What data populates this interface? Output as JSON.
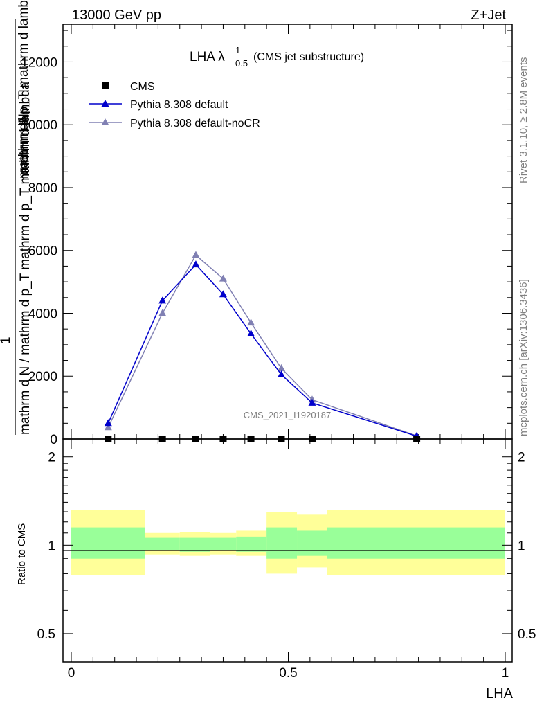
{
  "header": {
    "left": "13000 GeV pp",
    "right": "Z+Jet"
  },
  "side_labels": {
    "rivet": "Rivet 3.1.10, ≥ 2.8M events",
    "mcplots": "mcplots.cern.ch [arXiv:1306.3436]"
  },
  "main_plot": {
    "title_main": "LHA λ",
    "title_sup": "1",
    "title_sub": "0.5",
    "title_suffix": "(CMS jet substructure)",
    "watermark": "CMS_2021_I1920187",
    "ylabel_numerator": "mathrm dN",
    "ylabel_numerator_1": "mathrm d p_T mathrm d lambda",
    "ylabel_one": "1",
    "ylabel_denominator": "mathrm d N / mathrm d p_T mathrm d p_T mathrm d lambda",
    "legend": [
      {
        "label": "CMS",
        "marker": "square",
        "color": "#000000"
      },
      {
        "label": "Pythia 8.308 default",
        "marker": "triangle",
        "color": "#0000cc"
      },
      {
        "label": "Pythia 8.308 default-noCR",
        "marker": "triangle",
        "color": "#8080b3"
      }
    ],
    "yticks": [
      "0",
      "2000",
      "4000",
      "6000",
      "8000",
      "10000",
      "12000"
    ]
  },
  "ratio_plot": {
    "ylabel": "Ratio to CMS",
    "yticks": [
      "0.5",
      "1",
      "2"
    ],
    "xticks": [
      "0",
      "0.5",
      "1"
    ],
    "xlabel": "LHA"
  },
  "colors": {
    "band_inner": "#99ff99",
    "band_outer": "#ffff99",
    "series_default": "#0000cc",
    "series_nocr": "#8080b3"
  },
  "chart_data": {
    "type": "line",
    "xlabel": "LHA",
    "xlim": [
      0,
      1
    ],
    "ylim": [
      0,
      13200
    ],
    "x": [
      0.085,
      0.21,
      0.287,
      0.35,
      0.414,
      0.484,
      0.555,
      0.796
    ],
    "series": [
      {
        "name": "CMS",
        "values": [
          0,
          0,
          0,
          0,
          0,
          0,
          0,
          0
        ]
      },
      {
        "name": "Pythia 8.308 default",
        "values": [
          500,
          4400,
          5550,
          4600,
          3350,
          2050,
          1150,
          90
        ]
      },
      {
        "name": "Pythia 8.308 default-noCR",
        "values": [
          370,
          4000,
          5850,
          5100,
          3700,
          2250,
          1250,
          100
        ]
      }
    ],
    "ratio": {
      "ylim": [
        0.4,
        2.3
      ],
      "scale": "log",
      "bins": [
        {
          "x0": 0.0,
          "x1": 0.17,
          "inner": [
            0.9,
            1.15
          ],
          "outer": [
            0.79,
            1.32
          ]
        },
        {
          "x0": 0.17,
          "x1": 0.25,
          "inner": [
            0.96,
            1.06
          ],
          "outer": [
            0.93,
            1.1
          ]
        },
        {
          "x0": 0.25,
          "x1": 0.32,
          "inner": [
            0.95,
            1.06
          ],
          "outer": [
            0.92,
            1.11
          ]
        },
        {
          "x0": 0.32,
          "x1": 0.38,
          "inner": [
            0.96,
            1.06
          ],
          "outer": [
            0.93,
            1.1
          ]
        },
        {
          "x0": 0.38,
          "x1": 0.45,
          "inner": [
            0.95,
            1.07
          ],
          "outer": [
            0.92,
            1.12
          ]
        },
        {
          "x0": 0.45,
          "x1": 0.52,
          "inner": [
            0.9,
            1.15
          ],
          "outer": [
            0.8,
            1.3
          ]
        },
        {
          "x0": 0.52,
          "x1": 0.59,
          "inner": [
            0.92,
            1.12
          ],
          "outer": [
            0.84,
            1.27
          ]
        },
        {
          "x0": 0.59,
          "x1": 1.0,
          "inner": [
            0.9,
            1.15
          ],
          "outer": [
            0.79,
            1.32
          ]
        }
      ]
    }
  }
}
